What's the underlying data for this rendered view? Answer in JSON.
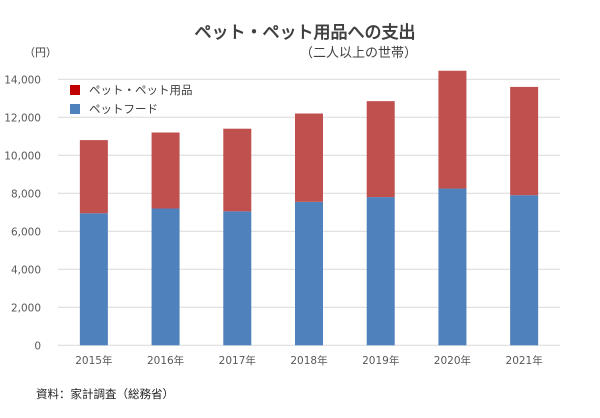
{
  "chart_data": {
    "type": "bar",
    "stacked": true,
    "title": "ペット・ペット用品への支出",
    "subtitle": "（二人以上の世帯）",
    "ylabel": "（円）",
    "xlabel": "",
    "source": "資料：家計調査（総務省）",
    "categories": [
      "2015年",
      "2016年",
      "2017年",
      "2018年",
      "2019年",
      "2020年",
      "2021年"
    ],
    "series": [
      {
        "name": "ペットフード",
        "color": "#4F81BD",
        "legend_color": "#4F81BD",
        "values": [
          6950,
          7200,
          7050,
          7550,
          7800,
          8250,
          7900
        ]
      },
      {
        "name": "ペット・ペット用品",
        "color": "#C0504D",
        "legend_color": "#C00000",
        "values": [
          3850,
          4000,
          4350,
          4650,
          5050,
          6200,
          5700
        ]
      }
    ],
    "totals": [
      10800,
      11200,
      11400,
      12200,
      12850,
      14450,
      13600
    ],
    "ylim": [
      0,
      14000
    ],
    "yticks": [
      0,
      2000,
      4000,
      6000,
      8000,
      10000,
      12000,
      14000
    ],
    "ytick_labels": [
      "0",
      "2,000",
      "4,000",
      "6,000",
      "8,000",
      "10,000",
      "12,000",
      "14,000"
    ],
    "grid": true,
    "legend_position": "top-left",
    "legend_order": [
      "ペット・ペット用品",
      "ペットフード"
    ]
  }
}
